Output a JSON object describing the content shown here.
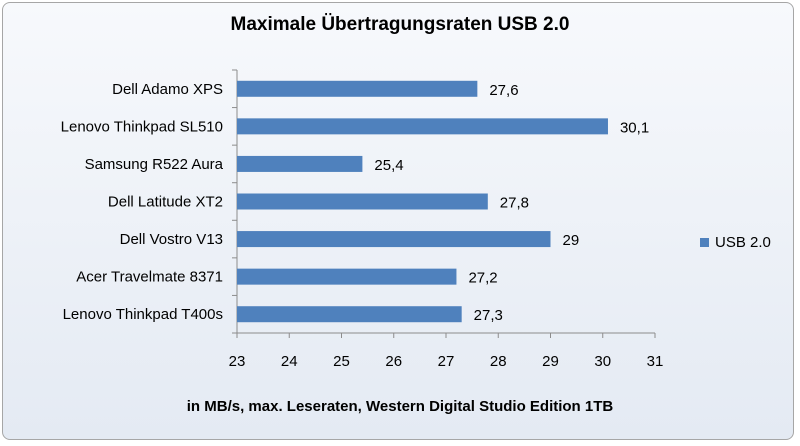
{
  "chart_data": {
    "type": "bar",
    "orientation": "horizontal",
    "title": "Maximale Übertragungsraten USB 2.0",
    "xlabel": "in MB/s, max. Leseraten, Western Digital Studio Edition 1TB",
    "ylabel": "",
    "categories": [
      "Dell Adamo XPS",
      "Lenovo Thinkpad SL510",
      "Samsung R522 Aura",
      "Dell Latitude XT2",
      "Dell Vostro V13",
      "Acer Travelmate 8371",
      "Lenovo Thinkpad T400s"
    ],
    "series": [
      {
        "name": "USB 2.0",
        "color": "#4f81bd",
        "values": [
          27.6,
          30.1,
          25.4,
          27.8,
          29,
          27.2,
          27.3
        ],
        "value_labels": [
          "27,6",
          "30,1",
          "25,4",
          "27,8",
          "29",
          "27,2",
          "27,3"
        ]
      }
    ],
    "xlim": [
      23,
      31
    ],
    "ticks": [
      23,
      24,
      25,
      26,
      27,
      28,
      29,
      30,
      31
    ],
    "grid": false,
    "legend_position": "right"
  }
}
